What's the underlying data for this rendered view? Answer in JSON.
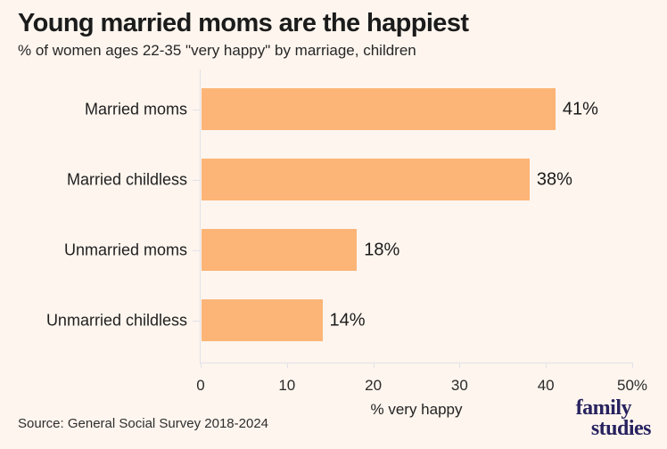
{
  "background_color": "#fdf5ee",
  "header": {
    "title": "Young married moms are the happiest",
    "subtitle": "% of women ages 22-35 \"very happy\" by marriage, children"
  },
  "chart_data": {
    "type": "bar",
    "orientation": "horizontal",
    "title": "Young married moms are the happiest",
    "subtitle": "% of women ages 22-35 \"very happy\" by marriage, children",
    "categories": [
      "Married moms",
      "Married childless",
      "Unmarried moms",
      "Unmarried childless"
    ],
    "values": [
      41,
      38,
      18,
      14
    ],
    "value_labels": [
      "41%",
      "38%",
      "18%",
      "14%"
    ],
    "xlabel": "% very happy",
    "ylabel": "",
    "xlim": [
      0,
      50
    ],
    "x_ticks": [
      0,
      10,
      20,
      30,
      40,
      50
    ],
    "x_tick_labels": [
      "0",
      "10",
      "20",
      "30",
      "40",
      "50%"
    ],
    "grid": false,
    "legend": false,
    "bar_color": "#fcb577",
    "text_color": "#1b1b1b"
  },
  "footer": {
    "source": "Source: General Social Survey 2018-2024",
    "logo": {
      "line1": "family",
      "line2": "studies",
      "color": "#27225f"
    }
  }
}
